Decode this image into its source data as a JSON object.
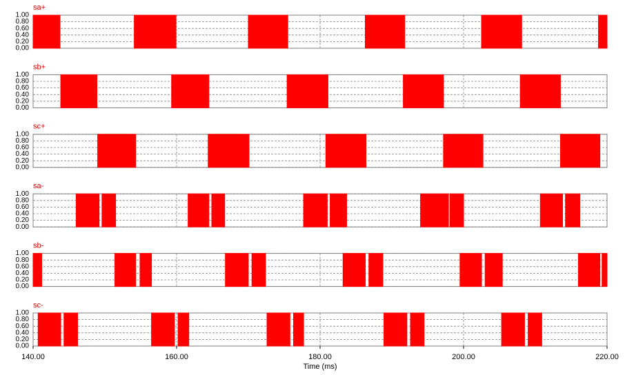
{
  "chart_data": {
    "type": "step",
    "x_label": "Time (ms)",
    "xlim": [
      140,
      220
    ],
    "xticks": [
      {
        "value": 140,
        "label": "140.00"
      },
      {
        "value": 160,
        "label": "160.00"
      },
      {
        "value": 180,
        "label": "180.00"
      },
      {
        "value": 200,
        "label": "200.00"
      },
      {
        "value": 220,
        "label": "220.00"
      }
    ],
    "ylim": [
      0,
      1
    ],
    "yticks": [
      {
        "value": 0,
        "label": "0.00"
      },
      {
        "value": 0.2,
        "label": "0.20"
      },
      {
        "value": 0.4,
        "label": "0.40"
      },
      {
        "value": 0.6,
        "label": "0.60"
      },
      {
        "value": 0.8,
        "label": "0.80"
      },
      {
        "value": 1,
        "label": "1.00"
      }
    ],
    "grid": true,
    "series": [
      {
        "name": "sa+",
        "color": "#ff0000",
        "x": [
          140,
          143.75,
          154.1,
          159.9,
          170,
          175.5,
          186.3,
          191.8,
          202.5,
          208.1,
          218.8
        ],
        "values": [
          1,
          0,
          1,
          0,
          1,
          0,
          1,
          0,
          1,
          0,
          1
        ]
      },
      {
        "name": "sb+",
        "color": "#ff0000",
        "x": [
          140,
          143.85,
          148.9,
          159.3,
          164.5,
          175.4,
          181.1,
          191.6,
          197.2,
          207.9,
          213.5
        ],
        "values": [
          0,
          1,
          0,
          1,
          0,
          1,
          0,
          1,
          0,
          1,
          0
        ]
      },
      {
        "name": "sc+",
        "color": "#ff0000",
        "x": [
          140,
          149,
          154.3,
          164.4,
          170.1,
          180.8,
          186.4,
          197.2,
          202.7,
          213.5,
          219
        ],
        "values": [
          0,
          1,
          0,
          1,
          0,
          1,
          0,
          1,
          0,
          1,
          0
        ]
      },
      {
        "name": "sa-",
        "color": "#ff0000",
        "x": [
          140,
          146,
          149.2,
          149.6,
          151.5,
          161.6,
          164.5,
          164.9,
          166.7,
          177.7,
          181,
          181.4,
          183.7,
          194,
          197.9,
          198.1,
          200,
          210.7,
          213.8,
          214.2,
          216.2
        ],
        "values": [
          0,
          1,
          0,
          1,
          0,
          1,
          0,
          1,
          0,
          1,
          0,
          1,
          0,
          1,
          0,
          1,
          0,
          1,
          0,
          1,
          0
        ]
      },
      {
        "name": "sb-",
        "color": "#ff0000",
        "x": [
          140,
          141.2,
          151.4,
          154.3,
          154.9,
          156.5,
          166.8,
          170,
          170.5,
          172.4,
          183.2,
          186.3,
          186.8,
          188.75,
          199.5,
          202.5,
          203,
          205.4,
          216,
          219,
          219.3
        ],
        "values": [
          1,
          0,
          1,
          0,
          1,
          0,
          1,
          0,
          1,
          0,
          1,
          0,
          1,
          0,
          1,
          0,
          1,
          0,
          1,
          0,
          1
        ]
      },
      {
        "name": "sc-",
        "color": "#ff0000",
        "x": [
          140,
          140.7,
          143.85,
          144.3,
          146.2,
          156.5,
          159.7,
          160.2,
          161.7,
          172.6,
          175.8,
          176.3,
          177.7,
          188.9,
          192.1,
          192.6,
          194.5,
          205.3,
          208.5,
          209,
          210.9
        ],
        "values": [
          0,
          1,
          0,
          1,
          0,
          1,
          0,
          1,
          0,
          1,
          0,
          1,
          0,
          1,
          0,
          1,
          0,
          1,
          0,
          1,
          0
        ]
      }
    ]
  }
}
